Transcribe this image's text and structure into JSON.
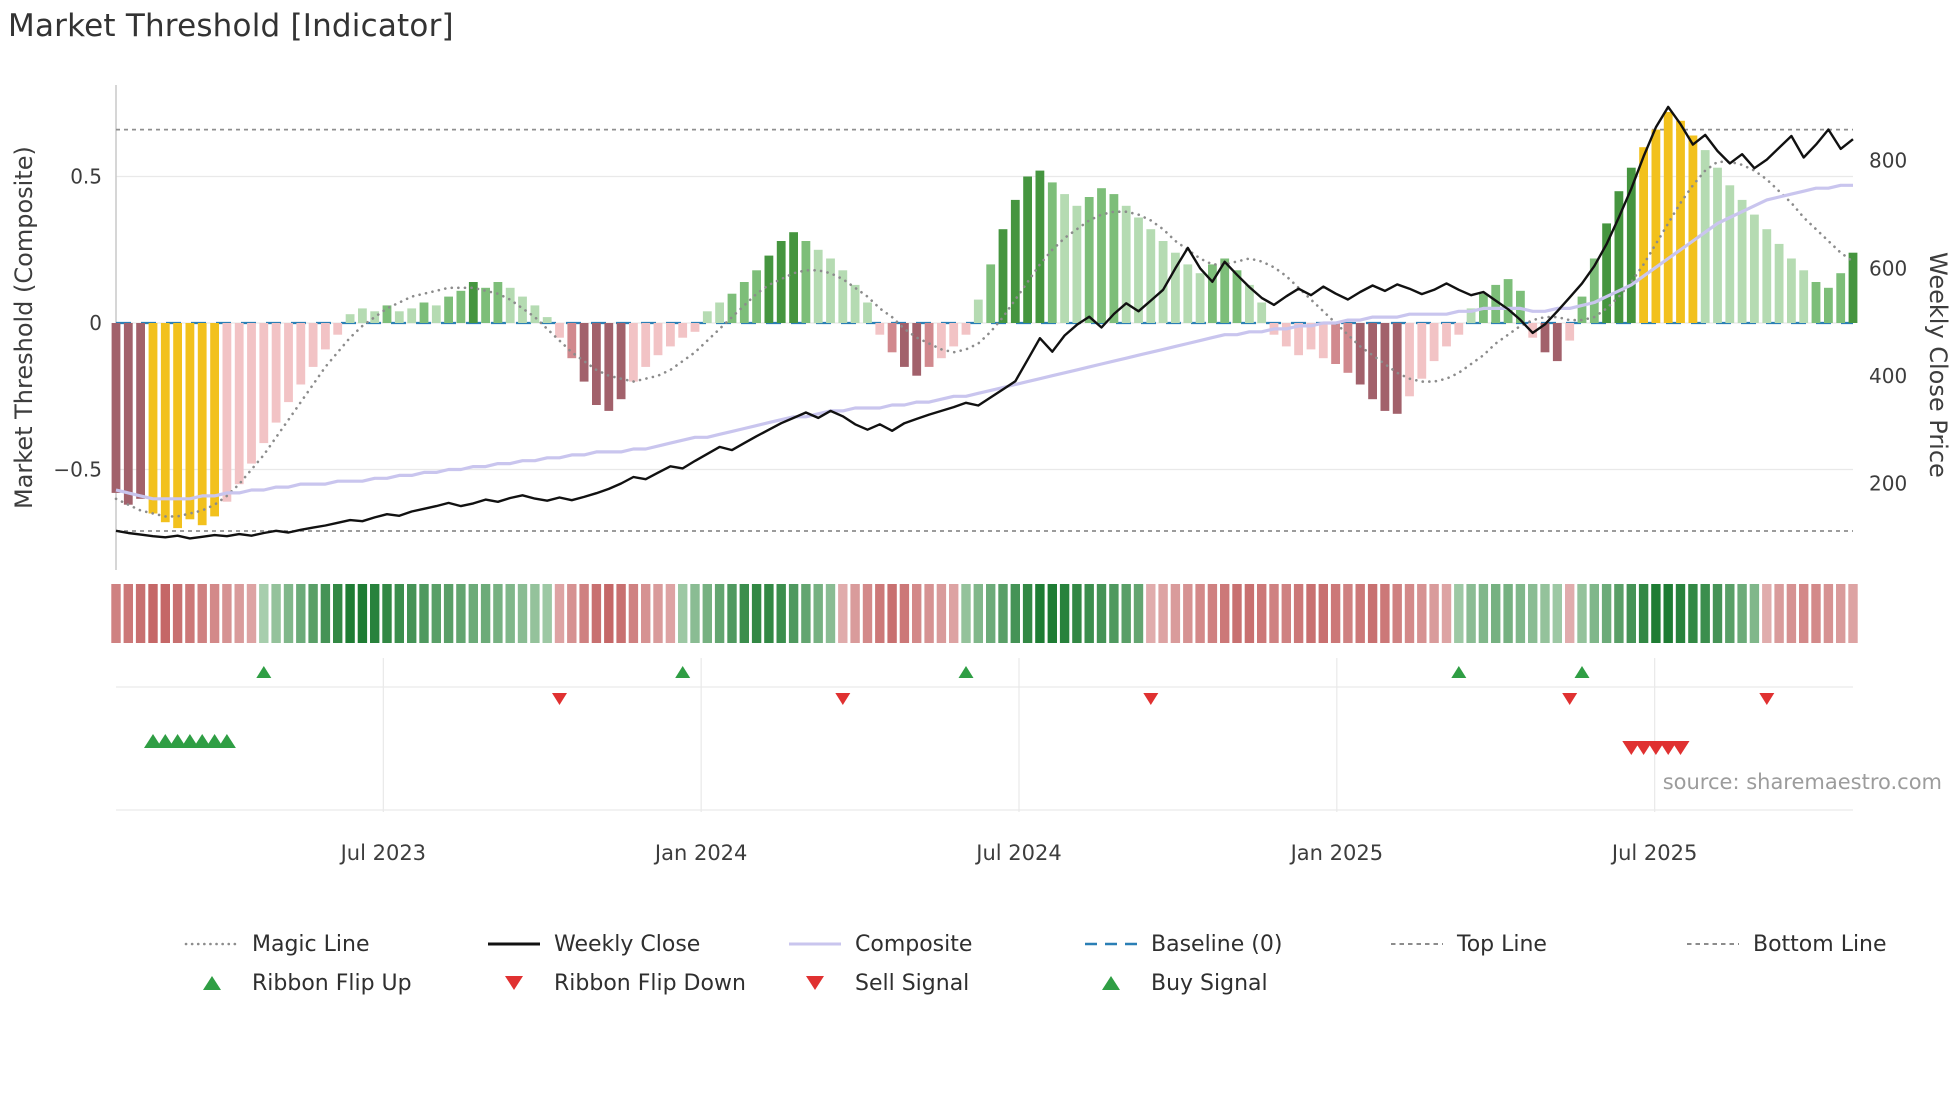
{
  "title": "Market Threshold [Indicator]",
  "source_note": "source: sharemaestro.com",
  "axes": {
    "left": {
      "label": "Market Threshold (Composite)",
      "ticks": [
        {
          "v": 0.5,
          "label": "0.5"
        },
        {
          "v": 0,
          "label": "0"
        },
        {
          "v": -0.5,
          "label": "−0.5"
        }
      ]
    },
    "right": {
      "label": "Weekly Close Price",
      "ticks": [
        {
          "v": 800,
          "label": "800"
        },
        {
          "v": 600,
          "label": "600"
        },
        {
          "v": 400,
          "label": "400"
        },
        {
          "v": 200,
          "label": "200"
        }
      ]
    },
    "x": {
      "ticks": [
        {
          "week": 21.7,
          "label": "Jul 2023"
        },
        {
          "week": 47.5,
          "label": "Jan 2024"
        },
        {
          "week": 73.3,
          "label": "Jul 2024"
        },
        {
          "week": 99.1,
          "label": "Jan 2025"
        },
        {
          "week": 124.9,
          "label": "Jul 2025"
        }
      ]
    }
  },
  "chart_data": {
    "type": "composite-indicator",
    "x_start_date": "2023-01-29",
    "x_interval": "weekly",
    "weeks": 142,
    "ylim_left": [
      -0.8,
      0.85
    ],
    "baseline": 0,
    "top_line": 0.66,
    "bottom_line": -0.71,
    "threshold_bars": {
      "values": [
        -0.58,
        -0.62,
        -0.6,
        -0.65,
        -0.68,
        -0.7,
        -0.67,
        -0.69,
        -0.66,
        -0.61,
        -0.55,
        -0.48,
        -0.41,
        -0.34,
        -0.27,
        -0.21,
        -0.15,
        -0.09,
        -0.04,
        0.03,
        0.05,
        0.04,
        0.06,
        0.04,
        0.05,
        0.07,
        0.06,
        0.09,
        0.11,
        0.14,
        0.12,
        0.14,
        0.12,
        0.09,
        0.06,
        0.02,
        -0.05,
        -0.12,
        -0.2,
        -0.28,
        -0.3,
        -0.26,
        -0.2,
        -0.15,
        -0.11,
        -0.08,
        -0.05,
        -0.03,
        0.04,
        0.07,
        0.1,
        0.14,
        0.18,
        0.23,
        0.28,
        0.31,
        0.28,
        0.25,
        0.22,
        0.18,
        0.13,
        0.07,
        -0.04,
        -0.1,
        -0.15,
        -0.18,
        -0.15,
        -0.12,
        -0.08,
        -0.04,
        0.08,
        0.2,
        0.32,
        0.42,
        0.5,
        0.52,
        0.48,
        0.44,
        0.4,
        0.43,
        0.46,
        0.44,
        0.4,
        0.36,
        0.32,
        0.28,
        0.24,
        0.2,
        0.17,
        0.2,
        0.22,
        0.18,
        0.13,
        0.07,
        -0.04,
        -0.08,
        -0.11,
        -0.09,
        -0.12,
        -0.14,
        -0.17,
        -0.21,
        -0.26,
        -0.3,
        -0.31,
        -0.25,
        -0.19,
        -0.13,
        -0.08,
        -0.04,
        0.05,
        0.1,
        0.13,
        0.15,
        0.11,
        -0.05,
        -0.1,
        -0.13,
        -0.06,
        0.09,
        0.22,
        0.34,
        0.45,
        0.53,
        0.6,
        0.66,
        0.72,
        0.69,
        0.64,
        0.59,
        0.53,
        0.47,
        0.42,
        0.37,
        0.32,
        0.27,
        0.22,
        0.18,
        0.14,
        0.12,
        0.17,
        0.24
      ],
      "colors": "mmmyyyyyypppppppppplllgllglggdggllllprmmmmppppppllgggdddglllllprmmrppplgddddgllggglllllllgggllppppprrmmmmppppplggggpmmpggdddyyyyylllllllllgggd"
    },
    "lines": {
      "weekly_close": {
        "axis": "right",
        "values": [
          112,
          108,
          105,
          102,
          100,
          103,
          98,
          101,
          104,
          102,
          106,
          103,
          108,
          112,
          109,
          114,
          118,
          122,
          127,
          132,
          130,
          137,
          143,
          140,
          148,
          153,
          158,
          164,
          158,
          163,
          170,
          166,
          173,
          178,
          172,
          168,
          174,
          169,
          175,
          182,
          190,
          200,
          212,
          208,
          220,
          232,
          228,
          242,
          255,
          268,
          262,
          275,
          288,
          300,
          312,
          322,
          332,
          322,
          335,
          325,
          310,
          300,
          310,
          298,
          312,
          320,
          328,
          335,
          342,
          350,
          345,
          360,
          375,
          390,
          430,
          470,
          445,
          475,
          495,
          510,
          490,
          515,
          535,
          520,
          540,
          560,
          600,
          638,
          600,
          575,
          612,
          588,
          565,
          545,
          532,
          548,
          562,
          550,
          566,
          553,
          542,
          556,
          568,
          558,
          570,
          562,
          552,
          560,
          572,
          560,
          550,
          556,
          540,
          524,
          504,
          480,
          496,
          520,
          546,
          572,
          604,
          645,
          695,
          748,
          808,
          862,
          900,
          868,
          830,
          848,
          818,
          795,
          812,
          786,
          802,
          824,
          846,
          806,
          830,
          858,
          822,
          840
        ]
      },
      "composite": {
        "axis": "left",
        "values": [
          -0.57,
          -0.58,
          -0.59,
          -0.6,
          -0.6,
          -0.6,
          -0.6,
          -0.59,
          -0.59,
          -0.58,
          -0.58,
          -0.57,
          -0.57,
          -0.56,
          -0.56,
          -0.55,
          -0.55,
          -0.55,
          -0.54,
          -0.54,
          -0.54,
          -0.53,
          -0.53,
          -0.52,
          -0.52,
          -0.51,
          -0.51,
          -0.5,
          -0.5,
          -0.49,
          -0.49,
          -0.48,
          -0.48,
          -0.47,
          -0.47,
          -0.46,
          -0.46,
          -0.45,
          -0.45,
          -0.44,
          -0.44,
          -0.44,
          -0.43,
          -0.43,
          -0.42,
          -0.41,
          -0.4,
          -0.39,
          -0.39,
          -0.38,
          -0.37,
          -0.36,
          -0.35,
          -0.34,
          -0.33,
          -0.32,
          -0.32,
          -0.31,
          -0.3,
          -0.3,
          -0.29,
          -0.29,
          -0.29,
          -0.28,
          -0.28,
          -0.27,
          -0.27,
          -0.26,
          -0.25,
          -0.25,
          -0.24,
          -0.23,
          -0.22,
          -0.21,
          -0.2,
          -0.19,
          -0.18,
          -0.17,
          -0.16,
          -0.15,
          -0.14,
          -0.13,
          -0.12,
          -0.11,
          -0.1,
          -0.09,
          -0.08,
          -0.07,
          -0.06,
          -0.05,
          -0.04,
          -0.04,
          -0.03,
          -0.03,
          -0.02,
          -0.02,
          -0.01,
          -0.01,
          0.0,
          0.0,
          0.01,
          0.01,
          0.02,
          0.02,
          0.02,
          0.03,
          0.03,
          0.03,
          0.03,
          0.04,
          0.04,
          0.05,
          0.05,
          0.05,
          0.05,
          0.04,
          0.04,
          0.05,
          0.05,
          0.06,
          0.07,
          0.09,
          0.11,
          0.13,
          0.16,
          0.19,
          0.22,
          0.25,
          0.28,
          0.31,
          0.34,
          0.36,
          0.38,
          0.4,
          0.42,
          0.43,
          0.44,
          0.45,
          0.46,
          0.46,
          0.47,
          0.47
        ]
      },
      "magic_line": {
        "axis": "left",
        "values": [
          -0.6,
          -0.62,
          -0.64,
          -0.65,
          -0.66,
          -0.66,
          -0.65,
          -0.64,
          -0.62,
          -0.59,
          -0.55,
          -0.5,
          -0.45,
          -0.39,
          -0.33,
          -0.27,
          -0.21,
          -0.15,
          -0.1,
          -0.05,
          -0.01,
          0.02,
          0.05,
          0.07,
          0.09,
          0.1,
          0.11,
          0.12,
          0.12,
          0.12,
          0.11,
          0.1,
          0.08,
          0.05,
          0.02,
          -0.02,
          -0.06,
          -0.1,
          -0.13,
          -0.16,
          -0.18,
          -0.19,
          -0.2,
          -0.19,
          -0.18,
          -0.16,
          -0.13,
          -0.1,
          -0.06,
          -0.02,
          0.02,
          0.06,
          0.1,
          0.13,
          0.15,
          0.17,
          0.18,
          0.18,
          0.17,
          0.15,
          0.12,
          0.09,
          0.05,
          0.02,
          -0.02,
          -0.05,
          -0.07,
          -0.09,
          -0.1,
          -0.09,
          -0.07,
          -0.03,
          0.02,
          0.08,
          0.14,
          0.2,
          0.25,
          0.29,
          0.32,
          0.35,
          0.37,
          0.38,
          0.38,
          0.37,
          0.35,
          0.32,
          0.28,
          0.25,
          0.22,
          0.2,
          0.2,
          0.21,
          0.22,
          0.21,
          0.19,
          0.16,
          0.12,
          0.08,
          0.04,
          0.0,
          -0.04,
          -0.08,
          -0.11,
          -0.14,
          -0.17,
          -0.19,
          -0.2,
          -0.2,
          -0.19,
          -0.17,
          -0.14,
          -0.11,
          -0.07,
          -0.04,
          -0.01,
          0.01,
          0.02,
          0.02,
          0.01,
          0.01,
          0.02,
          0.05,
          0.09,
          0.14,
          0.2,
          0.27,
          0.34,
          0.41,
          0.47,
          0.52,
          0.55,
          0.55,
          0.54,
          0.52,
          0.49,
          0.45,
          0.41,
          0.36,
          0.32,
          0.28,
          0.24,
          0.21
        ]
      }
    },
    "ribbon": {
      "values": [
        -0.6,
        -0.65,
        -0.7,
        -0.75,
        -0.75,
        -0.7,
        -0.65,
        -0.6,
        -0.55,
        -0.5,
        -0.45,
        -0.4,
        0.3,
        0.4,
        0.5,
        0.6,
        0.7,
        0.8,
        0.9,
        1.0,
        1.0,
        0.95,
        0.9,
        0.85,
        0.8,
        0.75,
        0.7,
        0.7,
        0.65,
        0.6,
        0.6,
        0.55,
        0.5,
        0.45,
        0.4,
        0.35,
        -0.4,
        -0.5,
        -0.6,
        -0.7,
        -0.75,
        -0.7,
        -0.6,
        -0.5,
        -0.45,
        -0.4,
        0.35,
        0.45,
        0.55,
        0.65,
        0.75,
        0.85,
        0.9,
        0.9,
        0.85,
        0.75,
        0.65,
        0.55,
        0.45,
        -0.35,
        -0.45,
        -0.55,
        -0.65,
        -0.7,
        -0.65,
        -0.55,
        -0.5,
        -0.45,
        -0.4,
        0.4,
        0.5,
        0.6,
        0.7,
        0.8,
        0.9,
        1.0,
        1.0,
        0.95,
        0.9,
        0.85,
        0.8,
        0.75,
        0.7,
        0.65,
        -0.35,
        -0.4,
        -0.45,
        -0.5,
        -0.55,
        -0.6,
        -0.65,
        -0.7,
        -0.7,
        -0.65,
        -0.6,
        -0.6,
        -0.65,
        -0.7,
        -0.7,
        -0.65,
        -0.6,
        -0.65,
        -0.7,
        -0.65,
        -0.6,
        -0.55,
        -0.5,
        -0.45,
        -0.4,
        0.35,
        0.45,
        0.5,
        0.55,
        0.55,
        0.5,
        0.45,
        0.4,
        0.35,
        -0.35,
        0.4,
        0.5,
        0.6,
        0.7,
        0.8,
        0.9,
        1.0,
        1.0,
        0.95,
        0.9,
        0.85,
        0.8,
        0.7,
        0.6,
        0.5,
        -0.35,
        -0.45,
        -0.5,
        -0.55,
        -0.55,
        -0.5,
        -0.45,
        -0.4
      ]
    },
    "signals": {
      "ribbon_flip_up_weeks": [
        12,
        46,
        69,
        109,
        119
      ],
      "ribbon_flip_down_weeks": [
        36,
        59,
        84,
        118,
        134
      ],
      "buy_signal_weeks": [
        3,
        4,
        5,
        6,
        7,
        8,
        9
      ],
      "sell_signal_weeks": [
        123,
        124,
        125,
        126,
        127
      ]
    }
  },
  "legend": {
    "row1": [
      {
        "label": "Magic Line",
        "type": "dotted",
        "color": "#8c8c8c"
      },
      {
        "label": "Weekly Close",
        "type": "solid",
        "color": "#111111"
      },
      {
        "label": "Composite",
        "type": "solid",
        "color": "#c9c5ee"
      },
      {
        "label": "Baseline (0)",
        "type": "dashed-long",
        "color": "#2a7fb5"
      },
      {
        "label": "Top Line",
        "type": "dashed",
        "color": "#8c8c8c"
      },
      {
        "label": "Bottom Line",
        "type": "dashed",
        "color": "#8c8c8c"
      }
    ],
    "row2": [
      {
        "label": "Ribbon Flip Up",
        "type": "tri-up",
        "color": "#2f9e44"
      },
      {
        "label": "Ribbon Flip Down",
        "type": "tri-down",
        "color": "#e03131"
      },
      {
        "label": "Sell Signal",
        "type": "tri-down",
        "color": "#e03131"
      },
      {
        "label": "Buy Signal",
        "type": "tri-up",
        "color": "#2f9e44"
      }
    ]
  },
  "colors": {
    "bar_palette": {
      "m": "#a2616b",
      "r": "#d1898e",
      "p": "#f2c3c5",
      "y": "#f2c11d",
      "l": "#b5dbb2",
      "g": "#7dbe79",
      "d": "#45953f"
    },
    "weekly_close": "#111111",
    "composite": "#c9c5ee",
    "magic_line": "#8c8c8c",
    "baseline": "#2a7fb5",
    "guide_line": "#8f8f8f",
    "grid": "#e9e9e9",
    "spine": "#c9c9c9",
    "ribbon_pos": "#1e7c33",
    "ribbon_neg": "#b43c3c",
    "ribbon_pos_light": "#e2f1e1",
    "ribbon_neg_light": "#f8e8e8",
    "flip_up": "#2f9e44",
    "flip_down": "#e03131",
    "buy": "#2f9e44",
    "sell": "#e03131",
    "text": "#3d3d3d"
  }
}
